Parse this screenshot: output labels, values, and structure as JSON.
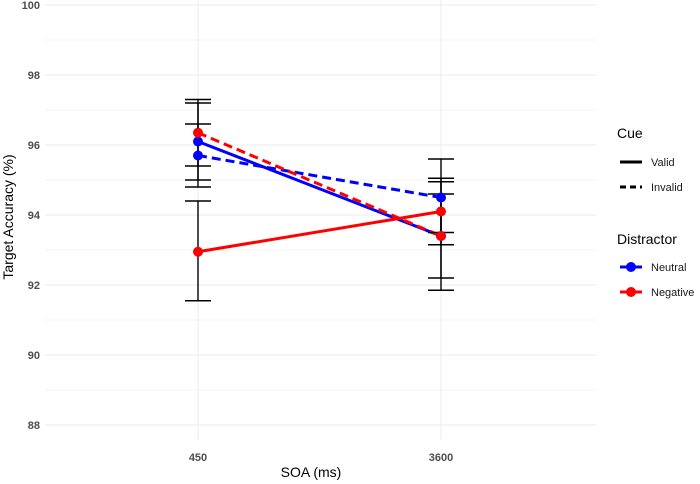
{
  "chart_data": {
    "type": "line",
    "title": "",
    "xlabel": "SOA (ms)",
    "ylabel": "Target Accuracy (%)",
    "categories": [
      "450",
      "3600"
    ],
    "ylim": [
      87.7,
      100
    ],
    "y_ticks": [
      88,
      90,
      92,
      94,
      96,
      98,
      100
    ],
    "y_tick_labels": [
      "88",
      "90",
      "92",
      "94",
      "96",
      "98",
      "100"
    ],
    "grid": true,
    "series": [
      {
        "name": "Neutral / Valid",
        "distractor": "Neutral",
        "cue": "Valid",
        "color": "#0000FF",
        "linetype": "solid",
        "values": [
          96.1,
          93.4
        ],
        "err_low": [
          95.0,
          92.2
        ],
        "err_high": [
          97.2,
          94.6
        ]
      },
      {
        "name": "Neutral / Invalid",
        "distractor": "Neutral",
        "cue": "Invalid",
        "color": "#0000FF",
        "linetype": "dashed",
        "values": [
          95.7,
          94.5
        ],
        "err_low": [
          94.8,
          93.5
        ],
        "err_high": [
          96.6,
          95.6
        ]
      },
      {
        "name": "Negative / Valid",
        "distractor": "Negative",
        "cue": "Valid",
        "color": "#FF0000",
        "linetype": "solid",
        "values": [
          92.95,
          94.1
        ],
        "err_low": [
          91.55,
          93.15
        ],
        "err_high": [
          94.4,
          95.05
        ]
      },
      {
        "name": "Negative / Invalid",
        "distractor": "Negative",
        "cue": "Invalid",
        "color": "#FF0000",
        "linetype": "dashed",
        "values": [
          96.35,
          93.4
        ],
        "err_low": [
          95.4,
          91.85
        ],
        "err_high": [
          97.3,
          94.95
        ]
      }
    ],
    "legend": {
      "position": "right",
      "groups": [
        {
          "title": "Cue",
          "items": [
            {
              "label": "Valid",
              "linetype": "solid"
            },
            {
              "label": "Invalid",
              "linetype": "dashed"
            }
          ]
        },
        {
          "title": "Distractor",
          "items": [
            {
              "label": "Neutral",
              "color": "#0000FF"
            },
            {
              "label": "Negative",
              "color": "#FF0000"
            }
          ]
        }
      ]
    }
  }
}
